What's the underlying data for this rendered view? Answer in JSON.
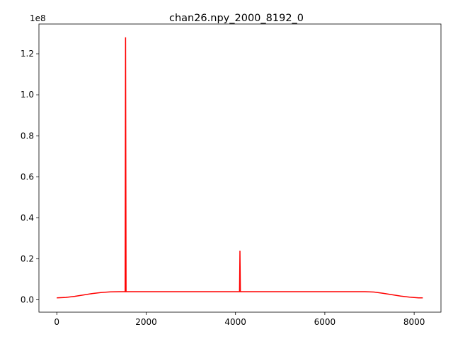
{
  "chart_data": {
    "type": "line",
    "title": "chan26.npy_2000_8192_0",
    "xlabel": "",
    "ylabel": "",
    "y_offset_label": "1e8",
    "xlim": [
      -400,
      8600
    ],
    "ylim": [
      -0.06,
      1.345
    ],
    "x_ticks": [
      0,
      2000,
      4000,
      6000,
      8000
    ],
    "x_tick_labels": [
      "0",
      "2000",
      "4000",
      "6000",
      "8000"
    ],
    "y_ticks": [
      0.0,
      0.2,
      0.4,
      0.6,
      0.8,
      1.0,
      1.2
    ],
    "y_tick_labels": [
      "0.0",
      "0.2",
      "0.4",
      "0.6",
      "0.8",
      "1.0",
      "1.2"
    ],
    "grid": false,
    "legend": "none",
    "series": [
      {
        "color": "#ff0000",
        "x": [
          0,
          200,
          400,
          600,
          800,
          1000,
          1200,
          1400,
          1530,
          1540,
          1550,
          2000,
          2500,
          3000,
          3500,
          4000,
          4090,
          4100,
          4110,
          4500,
          5000,
          5500,
          6000,
          6500,
          6900,
          7100,
          7300,
          7500,
          7700,
          7900,
          8100,
          8192
        ],
        "y": [
          0.01,
          0.012,
          0.017,
          0.024,
          0.031,
          0.036,
          0.039,
          0.04,
          0.04,
          1.28,
          0.04,
          0.04,
          0.04,
          0.04,
          0.04,
          0.04,
          0.04,
          0.24,
          0.04,
          0.04,
          0.04,
          0.04,
          0.04,
          0.04,
          0.04,
          0.038,
          0.032,
          0.025,
          0.018,
          0.013,
          0.01,
          0.01
        ]
      }
    ]
  }
}
